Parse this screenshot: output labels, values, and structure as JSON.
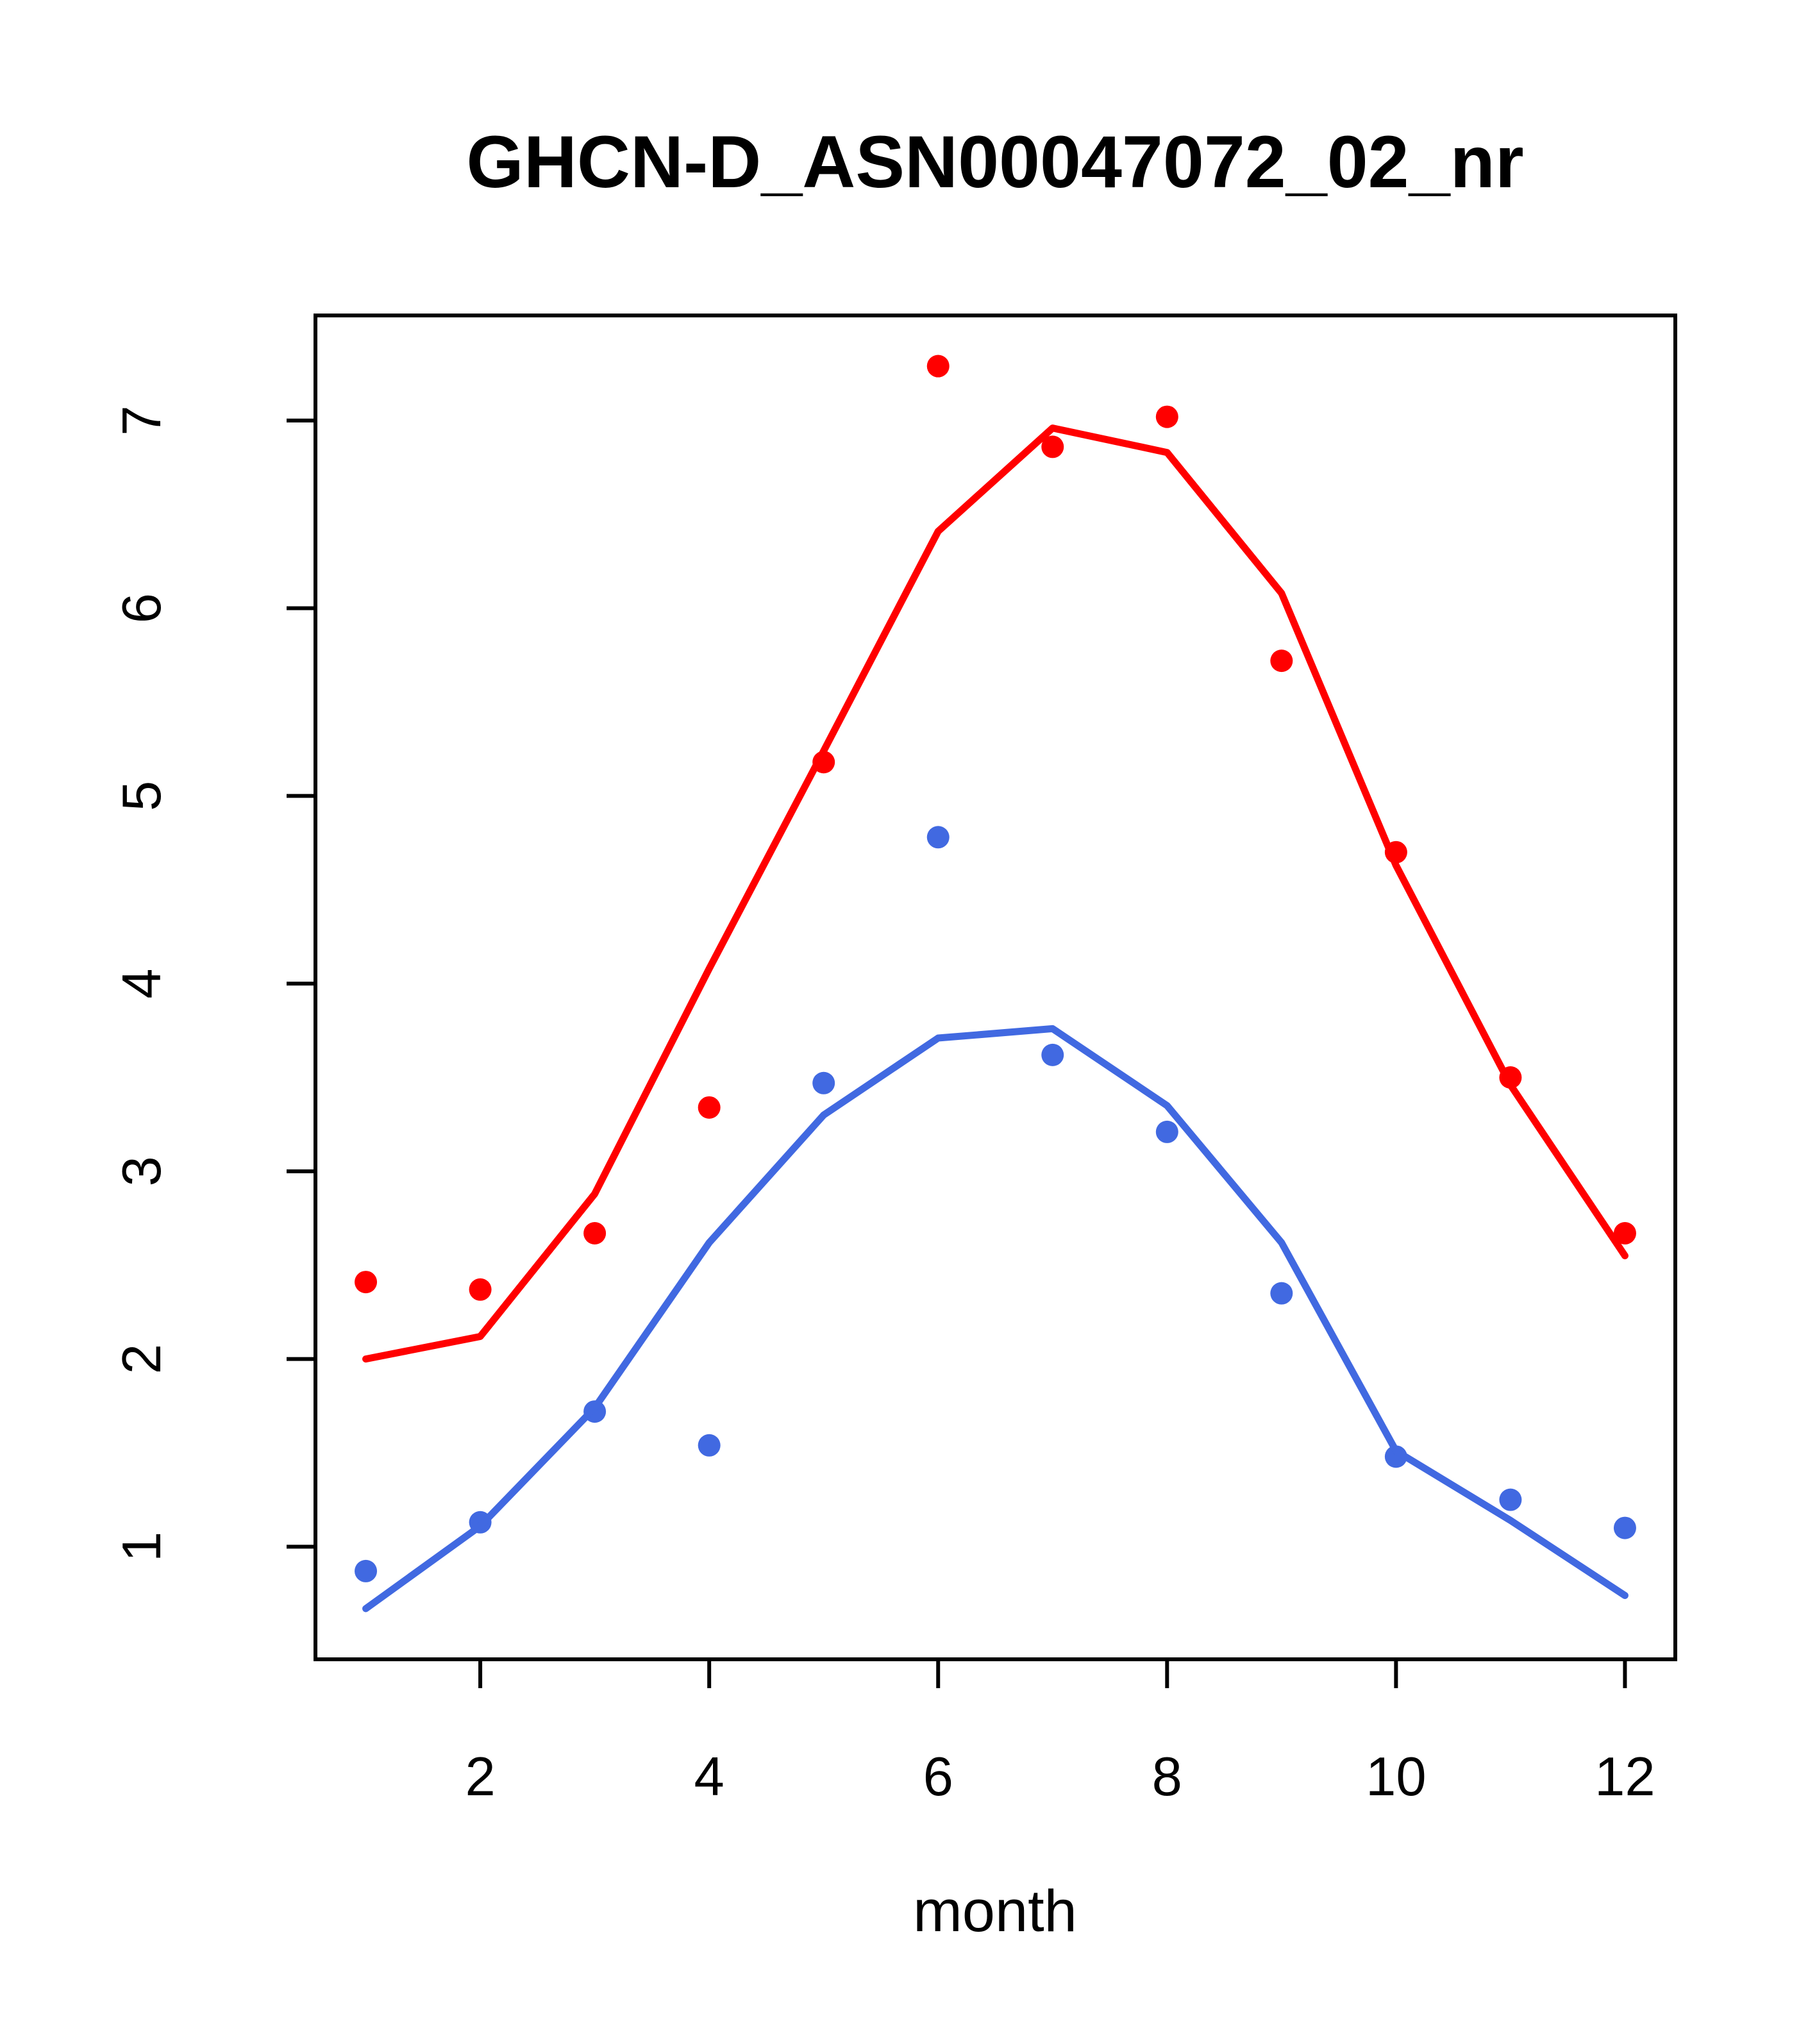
{
  "figure": {
    "title": "GHCN-D_ASN00047072_02_nr",
    "x_axis_label": "month"
  },
  "chart_data": {
    "type": "scatter",
    "title": "GHCN-D_ASN00047072_02_nr",
    "xlabel": "month",
    "ylabel": "",
    "x": [
      1,
      2,
      3,
      4,
      5,
      6,
      7,
      8,
      9,
      10,
      11,
      12
    ],
    "x_ticks": [
      2,
      4,
      6,
      8,
      10,
      12
    ],
    "y_ticks": [
      1,
      2,
      3,
      4,
      5,
      6,
      7
    ],
    "xlim": [
      0.56,
      12.44
    ],
    "ylim": [
      0.4,
      7.56
    ],
    "grid": false,
    "legend": false,
    "box": true,
    "series": [
      {
        "name": "red-points",
        "kind": "points",
        "color": "#ff0000",
        "values": [
          2.41,
          2.37,
          2.67,
          3.34,
          5.18,
          7.29,
          6.86,
          7.02,
          5.72,
          4.7,
          3.5,
          2.67
        ]
      },
      {
        "name": "red-fit-line",
        "kind": "line",
        "color": "#ff0000",
        "values": [
          2.0,
          2.12,
          2.88,
          4.08,
          5.24,
          6.41,
          6.96,
          6.83,
          6.08,
          4.63,
          3.46,
          2.55
        ]
      },
      {
        "name": "blue-points",
        "kind": "points",
        "color": "#4169e1",
        "values": [
          0.87,
          1.13,
          1.72,
          1.54,
          3.47,
          4.78,
          3.62,
          3.21,
          2.35,
          1.48,
          1.25,
          1.1
        ]
      },
      {
        "name": "blue-fit-line",
        "kind": "line",
        "color": "#4169e1",
        "values": [
          0.67,
          1.11,
          1.74,
          2.62,
          3.3,
          3.71,
          3.76,
          3.35,
          2.62,
          1.51,
          1.14,
          0.74
        ]
      }
    ]
  }
}
